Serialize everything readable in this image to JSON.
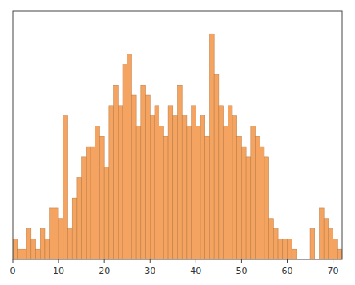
{
  "chart_data": {
    "type": "histogram",
    "bins": [
      0,
      1,
      2,
      3,
      4,
      5,
      6,
      7,
      8,
      9,
      10,
      11,
      12,
      13,
      14,
      15,
      16,
      17,
      18,
      19,
      20,
      21,
      22,
      23,
      24,
      25,
      26,
      27,
      28,
      29,
      30,
      31,
      32,
      33,
      34,
      35,
      36,
      37,
      38,
      39,
      40,
      41,
      42,
      43,
      44,
      45,
      46,
      47,
      48,
      49,
      50,
      51,
      52,
      53,
      54,
      55,
      56,
      57,
      58,
      59,
      60,
      61,
      62,
      63,
      64,
      65,
      66,
      67,
      68,
      69,
      70,
      71,
      72
    ],
    "values": [
      2,
      1,
      1,
      3,
      2,
      1,
      3,
      2,
      5,
      5,
      4,
      14,
      3,
      6,
      8,
      10,
      11,
      11,
      13,
      12,
      9,
      15,
      17,
      15,
      19,
      20,
      16,
      13,
      17,
      16,
      14,
      15,
      13,
      12,
      15,
      14,
      17,
      14,
      13,
      15,
      13,
      14,
      12,
      22,
      18,
      15,
      13,
      15,
      14,
      12,
      11,
      10,
      13,
      12,
      11,
      10,
      4,
      3,
      2,
      2,
      2,
      1,
      0,
      0,
      0,
      3,
      0,
      5,
      4,
      3,
      2,
      1
    ],
    "color": "#F4A460",
    "xlim": [
      0,
      72
    ],
    "xticks": [
      0,
      10,
      20,
      30,
      40,
      50,
      60,
      70
    ],
    "ylim": [
      0,
      24.2
    ],
    "yticks": [],
    "tick_labels": "x",
    "grid": false
  }
}
